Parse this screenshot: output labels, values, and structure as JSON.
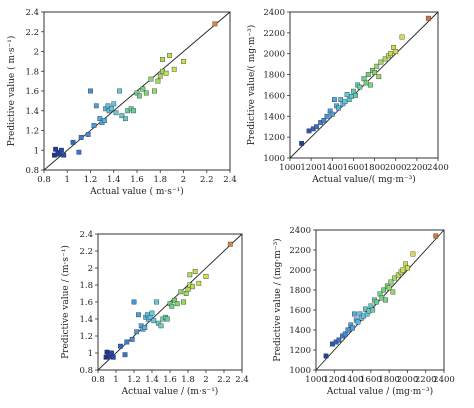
{
  "chart_data": [
    {
      "type": "scatter",
      "xlabel": "Actual value ( m·s⁻¹)",
      "ylabel": "Predictive value ( m·s⁻¹)",
      "xlim": [
        0.8,
        2.4
      ],
      "ylim": [
        0.8,
        2.4
      ],
      "xticks": [
        "0.8",
        "1",
        "1.2",
        "1.4",
        "1.6",
        "1.8",
        "2",
        "2.2",
        "2.4"
      ],
      "yticks": [
        "0.8",
        "1",
        "1.2",
        "1.4",
        "1.6",
        "1.8",
        "2",
        "2.2",
        "2.4"
      ],
      "fit_line": [
        [
          0.8,
          0.8
        ],
        [
          2.4,
          2.4
        ]
      ],
      "points": [
        [
          0.89,
          0.95
        ],
        [
          0.9,
          1.01
        ],
        [
          0.92,
          0.98
        ],
        [
          0.93,
          0.96
        ],
        [
          0.95,
          1.0
        ],
        [
          0.97,
          0.95
        ],
        [
          1.05,
          1.08
        ],
        [
          1.1,
          0.98
        ],
        [
          1.12,
          1.13
        ],
        [
          1.18,
          1.16
        ],
        [
          1.2,
          1.6
        ],
        [
          1.23,
          1.25
        ],
        [
          1.25,
          1.45
        ],
        [
          1.28,
          1.32
        ],
        [
          1.3,
          1.28
        ],
        [
          1.32,
          1.3
        ],
        [
          1.33,
          1.42
        ],
        [
          1.35,
          1.45
        ],
        [
          1.36,
          1.4
        ],
        [
          1.38,
          1.42
        ],
        [
          1.4,
          1.47
        ],
        [
          1.42,
          1.38
        ],
        [
          1.45,
          1.6
        ],
        [
          1.47,
          1.35
        ],
        [
          1.5,
          1.32
        ],
        [
          1.52,
          1.4
        ],
        [
          1.55,
          1.42
        ],
        [
          1.57,
          1.4
        ],
        [
          1.6,
          1.58
        ],
        [
          1.62,
          1.55
        ],
        [
          1.65,
          1.62
        ],
        [
          1.68,
          1.58
        ],
        [
          1.72,
          1.72
        ],
        [
          1.75,
          1.6
        ],
        [
          1.78,
          1.7
        ],
        [
          1.8,
          1.75
        ],
        [
          1.82,
          1.8
        ],
        [
          1.85,
          1.78
        ],
        [
          1.82,
          1.92
        ],
        [
          1.88,
          1.96
        ],
        [
          1.92,
          1.82
        ],
        [
          2.0,
          1.9
        ],
        [
          2.27,
          2.28
        ]
      ]
    },
    {
      "type": "scatter",
      "xlabel": "Actual value/( mg·m⁻³)",
      "ylabel": "Predictive value/( mg·m⁻³)",
      "xlim": [
        1000,
        2400
      ],
      "ylim": [
        1000,
        2400
      ],
      "xticks": [
        "1000",
        "1200",
        "1400",
        "1600",
        "1800",
        "2000",
        "2200",
        "2400"
      ],
      "yticks": [
        "1000",
        "1200",
        "1400",
        "1600",
        "1800",
        "2000",
        "2200",
        "2400"
      ],
      "fit_line": [
        [
          1000,
          1000
        ],
        [
          2400,
          2400
        ]
      ],
      "points": [
        [
          1110,
          1140
        ],
        [
          1180,
          1260
        ],
        [
          1220,
          1280
        ],
        [
          1250,
          1300
        ],
        [
          1290,
          1340
        ],
        [
          1320,
          1360
        ],
        [
          1350,
          1400
        ],
        [
          1380,
          1450
        ],
        [
          1400,
          1420
        ],
        [
          1420,
          1560
        ],
        [
          1440,
          1500
        ],
        [
          1460,
          1480
        ],
        [
          1480,
          1560
        ],
        [
          1500,
          1520
        ],
        [
          1520,
          1540
        ],
        [
          1540,
          1610
        ],
        [
          1560,
          1560
        ],
        [
          1580,
          1590
        ],
        [
          1600,
          1640
        ],
        [
          1620,
          1600
        ],
        [
          1640,
          1700
        ],
        [
          1660,
          1680
        ],
        [
          1700,
          1760
        ],
        [
          1720,
          1720
        ],
        [
          1740,
          1800
        ],
        [
          1760,
          1700
        ],
        [
          1780,
          1840
        ],
        [
          1800,
          1820
        ],
        [
          1820,
          1880
        ],
        [
          1840,
          1780
        ],
        [
          1860,
          1920
        ],
        [
          1900,
          1950
        ],
        [
          1930,
          1980
        ],
        [
          1950,
          2000
        ],
        [
          1980,
          2060
        ],
        [
          2000,
          2020
        ],
        [
          2060,
          2160
        ],
        [
          2310,
          2340
        ]
      ]
    },
    {
      "type": "scatter",
      "xlabel": "Actual value / (m·s⁻¹)",
      "ylabel": "Predictive value / (m·s⁻¹)",
      "xlim": [
        0.8,
        2.4
      ],
      "ylim": [
        0.8,
        2.4
      ],
      "xticks": [
        "0.8",
        "1",
        "1.2",
        "1.4",
        "1.6",
        "1.8",
        "2",
        "2.2",
        "2.4"
      ],
      "yticks": [
        "0.8",
        "1",
        "1.2",
        "1.4",
        "1.6",
        "1.8",
        "2",
        "2.2",
        "2.4"
      ],
      "fit_line": [
        [
          0.8,
          0.8
        ],
        [
          2.4,
          2.4
        ]
      ],
      "points": [
        [
          0.89,
          0.95
        ],
        [
          0.9,
          1.01
        ],
        [
          0.92,
          0.98
        ],
        [
          0.93,
          0.96
        ],
        [
          0.95,
          1.0
        ],
        [
          0.97,
          0.95
        ],
        [
          1.05,
          1.08
        ],
        [
          1.1,
          0.98
        ],
        [
          1.12,
          1.13
        ],
        [
          1.18,
          1.16
        ],
        [
          1.2,
          1.6
        ],
        [
          1.23,
          1.25
        ],
        [
          1.25,
          1.45
        ],
        [
          1.28,
          1.32
        ],
        [
          1.3,
          1.28
        ],
        [
          1.32,
          1.3
        ],
        [
          1.33,
          1.42
        ],
        [
          1.35,
          1.45
        ],
        [
          1.36,
          1.4
        ],
        [
          1.38,
          1.42
        ],
        [
          1.4,
          1.47
        ],
        [
          1.42,
          1.38
        ],
        [
          1.45,
          1.6
        ],
        [
          1.47,
          1.35
        ],
        [
          1.5,
          1.32
        ],
        [
          1.52,
          1.4
        ],
        [
          1.55,
          1.42
        ],
        [
          1.57,
          1.4
        ],
        [
          1.6,
          1.58
        ],
        [
          1.62,
          1.55
        ],
        [
          1.65,
          1.62
        ],
        [
          1.68,
          1.58
        ],
        [
          1.72,
          1.72
        ],
        [
          1.75,
          1.6
        ],
        [
          1.78,
          1.7
        ],
        [
          1.8,
          1.75
        ],
        [
          1.82,
          1.8
        ],
        [
          1.85,
          1.78
        ],
        [
          1.82,
          1.92
        ],
        [
          1.88,
          1.96
        ],
        [
          1.92,
          1.82
        ],
        [
          2.0,
          1.9
        ],
        [
          2.27,
          2.28
        ]
      ]
    },
    {
      "type": "scatter",
      "xlabel": "Actual value / (mg·m⁻³)",
      "ylabel": "Predictive value / (mg·m⁻³)",
      "xlim": [
        1000,
        2400
      ],
      "ylim": [
        1000,
        2400
      ],
      "xticks": [
        "1000",
        "1200",
        "1400",
        "1600",
        "1800",
        "2000",
        "2200",
        "2400"
      ],
      "yticks": [
        "1000",
        "1200",
        "1400",
        "1600",
        "1800",
        "2000",
        "2200",
        "2400"
      ],
      "fit_line": [
        [
          1000,
          1000
        ],
        [
          2400,
          2400
        ]
      ],
      "points": [
        [
          1110,
          1140
        ],
        [
          1180,
          1260
        ],
        [
          1220,
          1280
        ],
        [
          1250,
          1300
        ],
        [
          1290,
          1340
        ],
        [
          1320,
          1360
        ],
        [
          1350,
          1400
        ],
        [
          1380,
          1450
        ],
        [
          1400,
          1420
        ],
        [
          1420,
          1560
        ],
        [
          1440,
          1500
        ],
        [
          1460,
          1480
        ],
        [
          1480,
          1560
        ],
        [
          1500,
          1520
        ],
        [
          1520,
          1540
        ],
        [
          1540,
          1610
        ],
        [
          1560,
          1560
        ],
        [
          1580,
          1590
        ],
        [
          1600,
          1640
        ],
        [
          1620,
          1600
        ],
        [
          1640,
          1700
        ],
        [
          1660,
          1680
        ],
        [
          1700,
          1760
        ],
        [
          1720,
          1720
        ],
        [
          1740,
          1800
        ],
        [
          1760,
          1700
        ],
        [
          1780,
          1840
        ],
        [
          1800,
          1820
        ],
        [
          1820,
          1880
        ],
        [
          1840,
          1780
        ],
        [
          1860,
          1920
        ],
        [
          1900,
          1950
        ],
        [
          1930,
          1980
        ],
        [
          1950,
          2000
        ],
        [
          1980,
          2060
        ],
        [
          2000,
          2020
        ],
        [
          2060,
          2160
        ],
        [
          2310,
          2340
        ]
      ]
    }
  ],
  "colors": {
    "marker_scale": [
      "#1a2f9e",
      "#3a7fd8",
      "#5ec8e8",
      "#6fd37a",
      "#c8e04a",
      "#f0d84a",
      "#d02a2a"
    ],
    "fit_line": "#222222",
    "frame": "#333333"
  }
}
